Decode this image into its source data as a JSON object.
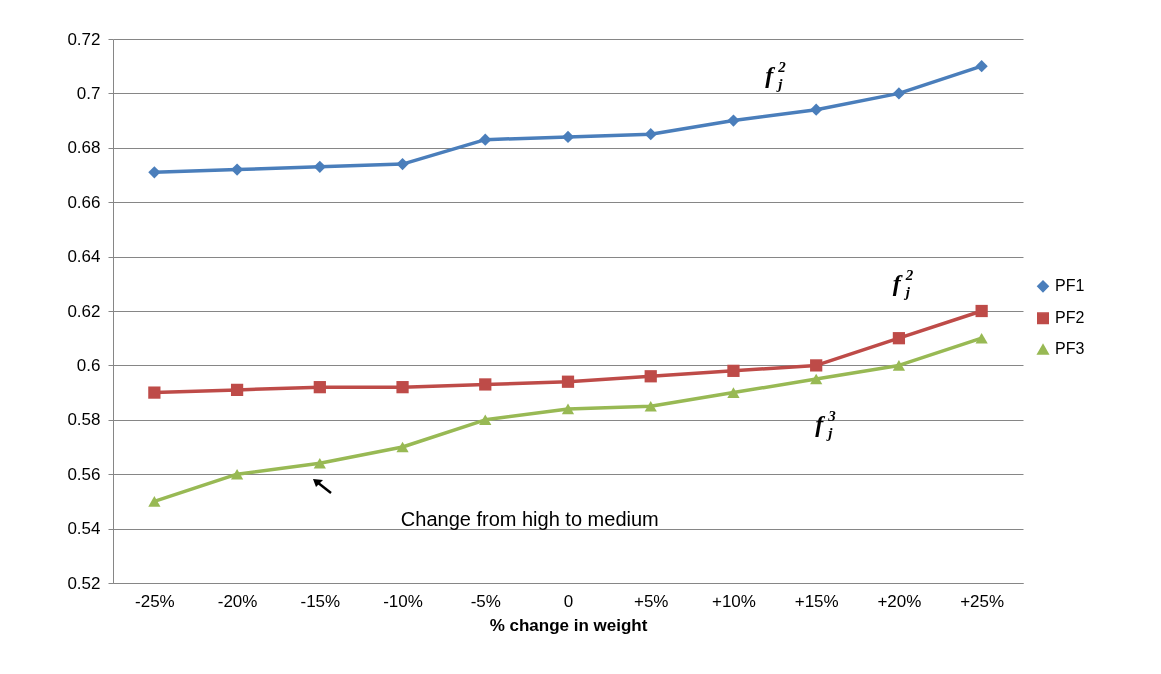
{
  "chart_data": {
    "type": "line",
    "xlabel": "% change in weight",
    "categories": [
      "-25%",
      "-20%",
      "-15%",
      "-10%",
      "-5%",
      "0",
      "+5%",
      "+10%",
      "+15%",
      "+20%",
      "+25%"
    ],
    "series": [
      {
        "name": "PF1",
        "color": "#4a7ebb",
        "marker": "diamond",
        "values": [
          0.671,
          0.672,
          0.673,
          0.674,
          0.683,
          0.684,
          0.685,
          0.69,
          0.694,
          0.7,
          0.71
        ]
      },
      {
        "name": "PF2",
        "color": "#be4b48",
        "marker": "square",
        "values": [
          0.59,
          0.591,
          0.592,
          0.592,
          0.593,
          0.594,
          0.596,
          0.598,
          0.6,
          0.61,
          0.62
        ]
      },
      {
        "name": "PF3",
        "color": "#98b954",
        "marker": "triangle",
        "values": [
          0.55,
          0.56,
          0.564,
          0.57,
          0.58,
          0.584,
          0.585,
          0.59,
          0.595,
          0.6,
          0.61
        ]
      }
    ],
    "ylim": [
      0.52,
      0.72
    ],
    "yticks": [
      0.52,
      0.54,
      0.56,
      0.58,
      0.6,
      0.62,
      0.64,
      0.66,
      0.68,
      0.7,
      0.72
    ],
    "grid": "y",
    "legend": "right",
    "line_style": "solid",
    "annotations": [
      "f$_{j}$$^{2}$",
      "f$_{j}$$^{2}$",
      "f$_{j}$$^{3}$",
      "Change from high to medium"
    ]
  }
}
